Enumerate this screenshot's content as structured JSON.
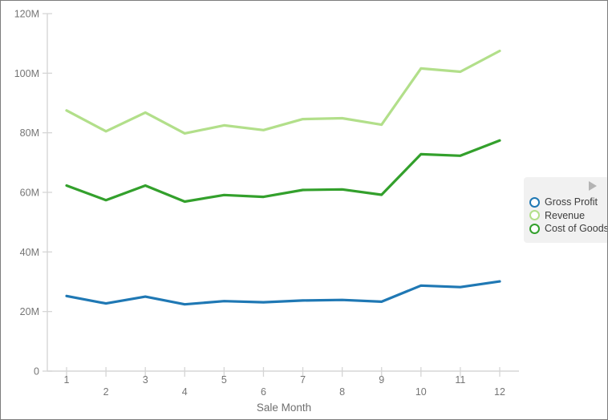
{
  "chart_data": {
    "type": "line",
    "title": "",
    "xlabel": "Sale Month",
    "ylabel": "",
    "value_unit": "millions",
    "grid": false,
    "legend_position": "right",
    "ylim": [
      0,
      120
    ],
    "y_ticks": [
      0,
      20,
      40,
      60,
      80,
      100,
      120
    ],
    "y_tick_labels": [
      "0",
      "20M",
      "40M",
      "60M",
      "80M",
      "100M",
      "120M"
    ],
    "x": [
      1,
      2,
      3,
      4,
      5,
      6,
      7,
      8,
      9,
      10,
      11,
      12
    ],
    "x_tick_labels": [
      "1",
      "2",
      "3",
      "4",
      "5",
      "6",
      "7",
      "8",
      "9",
      "10",
      "11",
      "12"
    ],
    "series": [
      {
        "name": "Gross Profit",
        "color": "#1f78b4",
        "values": [
          25.2,
          22.7,
          25.0,
          22.4,
          23.5,
          23.1,
          23.7,
          23.9,
          23.3,
          28.7,
          28.2,
          30.1
        ]
      },
      {
        "name": "Revenue",
        "color": "#b2df8a",
        "values": [
          87.5,
          80.5,
          86.8,
          79.8,
          82.5,
          80.9,
          84.6,
          84.9,
          82.7,
          101.6,
          100.5,
          107.5
        ]
      },
      {
        "name": "Cost of Goods",
        "color": "#33a02c",
        "values": [
          62.3,
          57.4,
          62.3,
          56.9,
          59.1,
          58.5,
          60.8,
          61.0,
          59.2,
          72.8,
          72.3,
          77.4
        ]
      }
    ]
  },
  "legend": {
    "collapse_icon": "right-triangle"
  },
  "style_colors": {
    "axis_line": "#d5d5d5",
    "axis_text": "#757575",
    "legend_bg": "#f1f1f1",
    "frame_border": "#7d7d7d"
  }
}
